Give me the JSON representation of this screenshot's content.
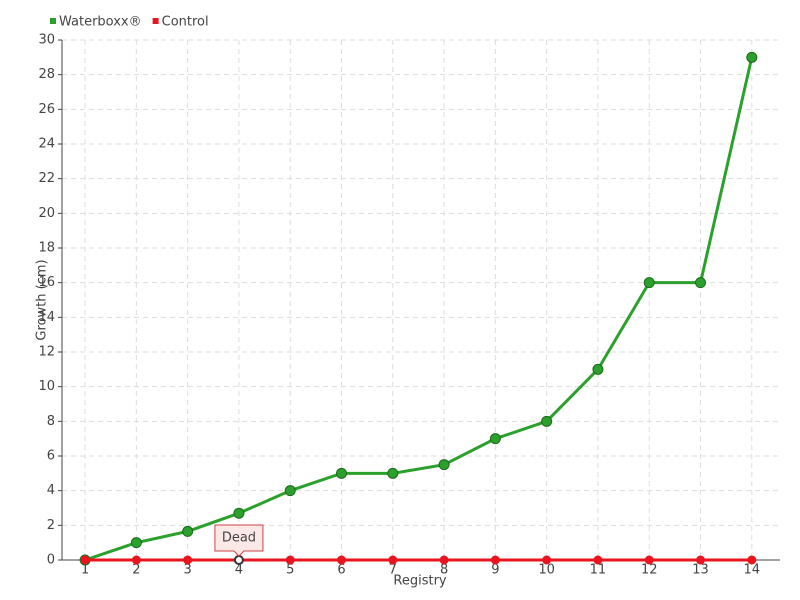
{
  "chart_data": {
    "type": "line",
    "categories": [
      "1",
      "2",
      "3",
      "4",
      "5",
      "6",
      "7",
      "8",
      "9",
      "10",
      "11",
      "12",
      "13",
      "14"
    ],
    "series": [
      {
        "name": "Waterboxx®",
        "color": "#2ca02c",
        "values": [
          0,
          1,
          1.65,
          2.7,
          4,
          5,
          5,
          5.5,
          7,
          8,
          11,
          16,
          16,
          29
        ]
      },
      {
        "name": "Control",
        "color": "#e8141e",
        "values": [
          0,
          0,
          0,
          0,
          0,
          0,
          0,
          0,
          0,
          0,
          0,
          0,
          0,
          0
        ]
      }
    ],
    "xlabel": "Registry",
    "ylabel": "Growth (cm)",
    "ylim": [
      0,
      30
    ],
    "yticks": [
      0,
      2,
      4,
      6,
      8,
      10,
      12,
      14,
      16,
      18,
      20,
      22,
      24,
      26,
      28,
      30
    ],
    "grid": true,
    "legend": "top-left",
    "annotation": "Dead"
  }
}
